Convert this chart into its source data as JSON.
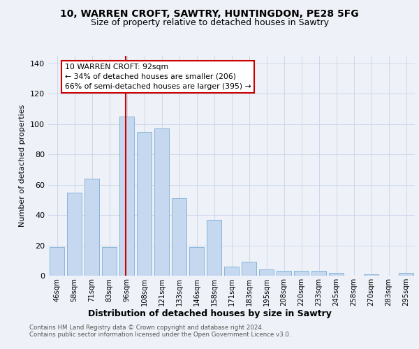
{
  "title1": "10, WARREN CROFT, SAWTRY, HUNTINGDON, PE28 5FG",
  "title2": "Size of property relative to detached houses in Sawtry",
  "xlabel": "Distribution of detached houses by size in Sawtry",
  "ylabel": "Number of detached properties",
  "categories": [
    "46sqm",
    "58sqm",
    "71sqm",
    "83sqm",
    "96sqm",
    "108sqm",
    "121sqm",
    "133sqm",
    "146sqm",
    "158sqm",
    "171sqm",
    "183sqm",
    "195sqm",
    "208sqm",
    "220sqm",
    "233sqm",
    "245sqm",
    "258sqm",
    "270sqm",
    "283sqm",
    "295sqm"
  ],
  "values": [
    19,
    55,
    64,
    19,
    105,
    95,
    97,
    51,
    19,
    37,
    6,
    9,
    4,
    3,
    3,
    3,
    2,
    0,
    1,
    0,
    2
  ],
  "bar_color": "#c5d8ef",
  "bar_edge_color": "#7aafd4",
  "annotation_text": "10 WARREN CROFT: 92sqm\n← 34% of detached houses are smaller (206)\n66% of semi-detached houses are larger (395) →",
  "redline_x": 3.92,
  "redline_color": "#cc0000",
  "annotation_box_color": "#ffffff",
  "annotation_box_edge": "#cc0000",
  "background_color": "#eef2f8",
  "footer": "Contains HM Land Registry data © Crown copyright and database right 2024.\nContains public sector information licensed under the Open Government Licence v3.0.",
  "ylim": [
    0,
    145
  ],
  "yticks": [
    0,
    20,
    40,
    60,
    80,
    100,
    120,
    140
  ],
  "title1_fontsize": 10,
  "title2_fontsize": 9
}
